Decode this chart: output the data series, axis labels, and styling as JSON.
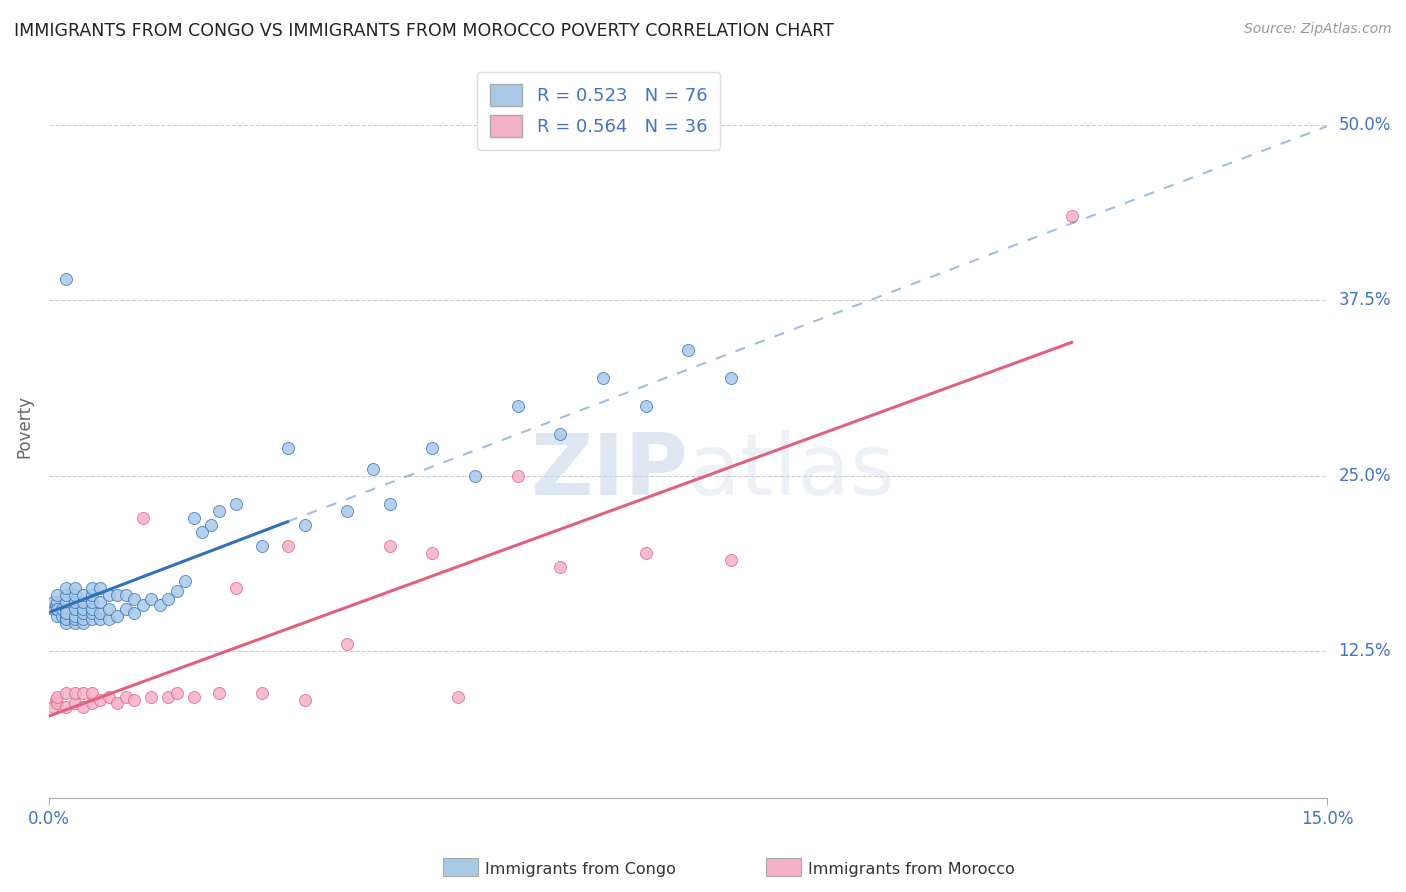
{
  "title": "IMMIGRANTS FROM CONGO VS IMMIGRANTS FROM MOROCCO POVERTY CORRELATION CHART",
  "source": "Source: ZipAtlas.com",
  "ylabel": "Poverty",
  "xlim": [
    0.0,
    0.15
  ],
  "ylim": [
    0.02,
    0.55
  ],
  "yticks": [
    0.125,
    0.25,
    0.375,
    0.5
  ],
  "ytick_labels": [
    "12.5%",
    "25.0%",
    "37.5%",
    "50.0%"
  ],
  "R_congo": 0.523,
  "N_congo": 76,
  "R_morocco": 0.564,
  "N_morocco": 36,
  "color_congo": "#a8c8e8",
  "color_morocco": "#f4b0c8",
  "color_congo_line": "#3070b8",
  "color_morocco_line": "#e06080",
  "color_text_blue": "#4472c4",
  "watermark_zip": "ZIP",
  "watermark_atlas": "atlas",
  "congo_x": [
    0.0005,
    0.0005,
    0.0008,
    0.001,
    0.001,
    0.001,
    0.001,
    0.001,
    0.0015,
    0.0015,
    0.002,
    0.002,
    0.002,
    0.002,
    0.002,
    0.002,
    0.002,
    0.002,
    0.003,
    0.003,
    0.003,
    0.003,
    0.003,
    0.003,
    0.003,
    0.004,
    0.004,
    0.004,
    0.004,
    0.004,
    0.004,
    0.005,
    0.005,
    0.005,
    0.005,
    0.005,
    0.005,
    0.006,
    0.006,
    0.006,
    0.006,
    0.007,
    0.007,
    0.007,
    0.008,
    0.008,
    0.009,
    0.009,
    0.01,
    0.01,
    0.011,
    0.012,
    0.013,
    0.014,
    0.015,
    0.016,
    0.017,
    0.018,
    0.019,
    0.02,
    0.022,
    0.025,
    0.028,
    0.03,
    0.035,
    0.038,
    0.04,
    0.045,
    0.05,
    0.055,
    0.06,
    0.065,
    0.07,
    0.075,
    0.08,
    0.002
  ],
  "congo_y": [
    0.155,
    0.16,
    0.158,
    0.15,
    0.155,
    0.16,
    0.165,
    0.155,
    0.15,
    0.155,
    0.145,
    0.15,
    0.155,
    0.16,
    0.148,
    0.152,
    0.165,
    0.17,
    0.145,
    0.148,
    0.15,
    0.155,
    0.16,
    0.165,
    0.17,
    0.145,
    0.148,
    0.152,
    0.155,
    0.16,
    0.165,
    0.148,
    0.152,
    0.155,
    0.16,
    0.165,
    0.17,
    0.148,
    0.152,
    0.16,
    0.17,
    0.148,
    0.155,
    0.165,
    0.15,
    0.165,
    0.155,
    0.165,
    0.152,
    0.162,
    0.158,
    0.162,
    0.158,
    0.162,
    0.168,
    0.175,
    0.22,
    0.21,
    0.215,
    0.225,
    0.23,
    0.2,
    0.27,
    0.215,
    0.225,
    0.255,
    0.23,
    0.27,
    0.25,
    0.3,
    0.28,
    0.32,
    0.3,
    0.34,
    0.32,
    0.39
  ],
  "morocco_x": [
    0.0005,
    0.0008,
    0.001,
    0.001,
    0.002,
    0.002,
    0.003,
    0.003,
    0.004,
    0.004,
    0.005,
    0.005,
    0.006,
    0.007,
    0.008,
    0.009,
    0.01,
    0.011,
    0.012,
    0.014,
    0.015,
    0.017,
    0.02,
    0.022,
    0.025,
    0.028,
    0.03,
    0.035,
    0.04,
    0.045,
    0.048,
    0.055,
    0.06,
    0.07,
    0.08,
    0.12
  ],
  "morocco_y": [
    0.085,
    0.09,
    0.088,
    0.092,
    0.085,
    0.095,
    0.088,
    0.095,
    0.085,
    0.095,
    0.088,
    0.095,
    0.09,
    0.092,
    0.088,
    0.092,
    0.09,
    0.22,
    0.092,
    0.092,
    0.095,
    0.092,
    0.095,
    0.17,
    0.095,
    0.2,
    0.09,
    0.13,
    0.2,
    0.195,
    0.092,
    0.25,
    0.185,
    0.195,
    0.19,
    0.435
  ],
  "congo_line_solid_xmax": 0.028,
  "morocco_line_xmax": 0.12
}
